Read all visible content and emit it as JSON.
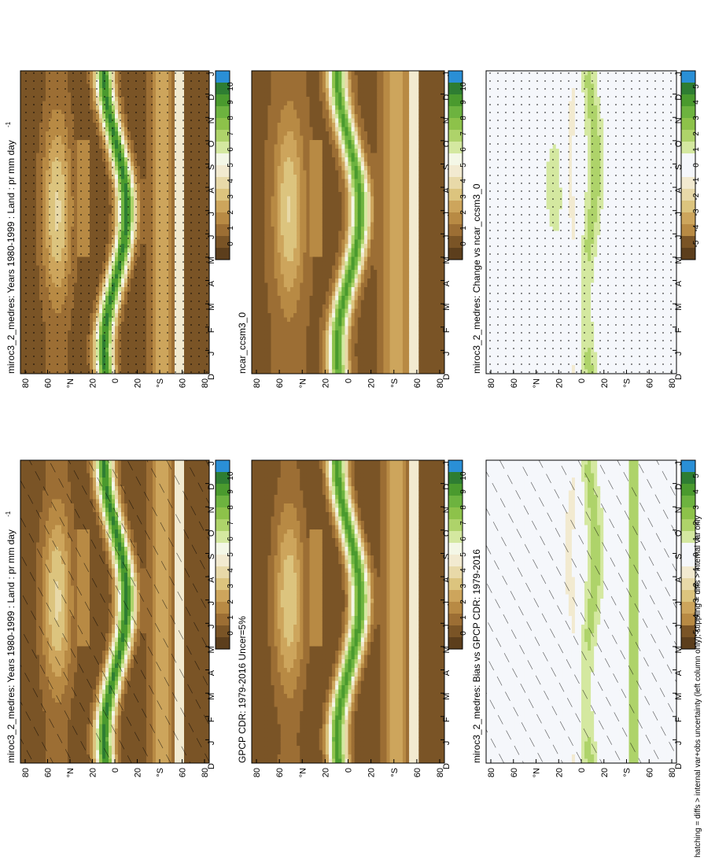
{
  "figure": {
    "footnote": "hatching = diffs > internal var+obs uncertainty (left column only); stippling = diffs > internal var only"
  },
  "month_labels": [
    "D",
    "J",
    "F",
    "M",
    "A",
    "M",
    "J",
    "J",
    "A",
    "S",
    "O",
    "N",
    "D",
    "J"
  ],
  "lat_labels": [
    "80",
    "60",
    "°N",
    "20",
    "0",
    "20",
    "°S",
    "60",
    "80"
  ],
  "colorbars": {
    "absolute": {
      "labels": [
        "10",
        "9",
        "8",
        "7",
        "6",
        "5",
        "4",
        "3",
        "2",
        "1",
        "0"
      ],
      "colors": [
        "#2a8fd6",
        "#2e7d32",
        "#4a9a2e",
        "#6db33f",
        "#8dc24a",
        "#aed36a",
        "#d4e8a0",
        "#f4f7e6",
        "#f2ead0",
        "#e8d9a8",
        "#dcc47e",
        "#cda55c",
        "#b88a44",
        "#9c6e34",
        "#7a5426",
        "#5c3e1c"
      ]
    },
    "difference": {
      "labels": [
        "5",
        "4",
        "3",
        "2",
        "1",
        "0",
        "-1",
        "-2",
        "-3",
        "-4",
        "-5"
      ],
      "colors": [
        "#2a8fd6",
        "#2e7d32",
        "#4a9a2e",
        "#6db33f",
        "#8dc24a",
        "#aed36a",
        "#d4e8a0",
        "#f5f7fb",
        "#f5f7fb",
        "#f2ead0",
        "#e8d9a8",
        "#dcc47e",
        "#cda55c",
        "#b88a44",
        "#7a5426",
        "#5c3e1c"
      ]
    }
  },
  "chart_data": [
    {
      "type": "heatmap",
      "title": "miroc3_2_medres: Years 1980-1999 : Land : pr mm day",
      "title_superscript": "-1",
      "x": [
        "D",
        "J",
        "F",
        "M",
        "A",
        "M",
        "J",
        "J",
        "A",
        "S",
        "O",
        "N",
        "D",
        "J"
      ],
      "y_ticks": [
        "80",
        "60",
        "°N",
        "20",
        "0",
        "20",
        "°S",
        "60",
        "80"
      ],
      "value_range": [
        0,
        10
      ],
      "overlay": "hatching+stippling"
    },
    {
      "type": "heatmap",
      "title": "miroc3_2_medres: Years 1980-1999 : Land : pr mm day",
      "title_superscript": "-1",
      "x": [
        "D",
        "J",
        "F",
        "M",
        "A",
        "M",
        "J",
        "J",
        "A",
        "S",
        "O",
        "N",
        "D",
        "J"
      ],
      "y_ticks": [
        "80",
        "60",
        "°N",
        "20",
        "0",
        "20",
        "°S",
        "60",
        "80"
      ],
      "value_range": [
        0,
        10
      ],
      "overlay": "stippling"
    },
    {
      "type": "heatmap",
      "title": "GPCP CDR: 1979-2016 Uncer=5%",
      "x": [
        "D",
        "J",
        "F",
        "M",
        "A",
        "M",
        "J",
        "J",
        "A",
        "S",
        "O",
        "N",
        "D",
        "J"
      ],
      "y_ticks": [
        "80",
        "60",
        "°N",
        "20",
        "0",
        "20",
        "°S",
        "60",
        "80"
      ],
      "value_range": [
        0,
        10
      ]
    },
    {
      "type": "heatmap",
      "title": "ncar_ccsm3_0",
      "x": [
        "D",
        "J",
        "F",
        "M",
        "A",
        "M",
        "J",
        "J",
        "A",
        "S",
        "O",
        "N",
        "D",
        "J"
      ],
      "y_ticks": [
        "80",
        "60",
        "°N",
        "20",
        "0",
        "20",
        "°S",
        "60",
        "80"
      ],
      "value_range": [
        0,
        10
      ]
    },
    {
      "type": "heatmap",
      "title": "miroc3_2_medres: Bias vs GPCP CDR: 1979-2016",
      "x": [
        "D",
        "J",
        "F",
        "M",
        "A",
        "M",
        "J",
        "J",
        "A",
        "S",
        "O",
        "N",
        "D",
        "J"
      ],
      "y_ticks": [
        "80",
        "60",
        "°N",
        "20",
        "0",
        "20",
        "°S",
        "60",
        "80"
      ],
      "value_range": [
        -5,
        5
      ],
      "overlay": "hatching+stippling"
    },
    {
      "type": "heatmap",
      "title": "miroc3_2_medres: Change vs ncar_ccsm3_0",
      "x": [
        "D",
        "J",
        "F",
        "M",
        "A",
        "M",
        "J",
        "J",
        "A",
        "S",
        "O",
        "N",
        "D",
        "J"
      ],
      "y_ticks": [
        "80",
        "60",
        "°N",
        "20",
        "0",
        "20",
        "°S",
        "60",
        "80"
      ],
      "value_range": [
        -5,
        5
      ],
      "overlay": "stippling"
    }
  ]
}
